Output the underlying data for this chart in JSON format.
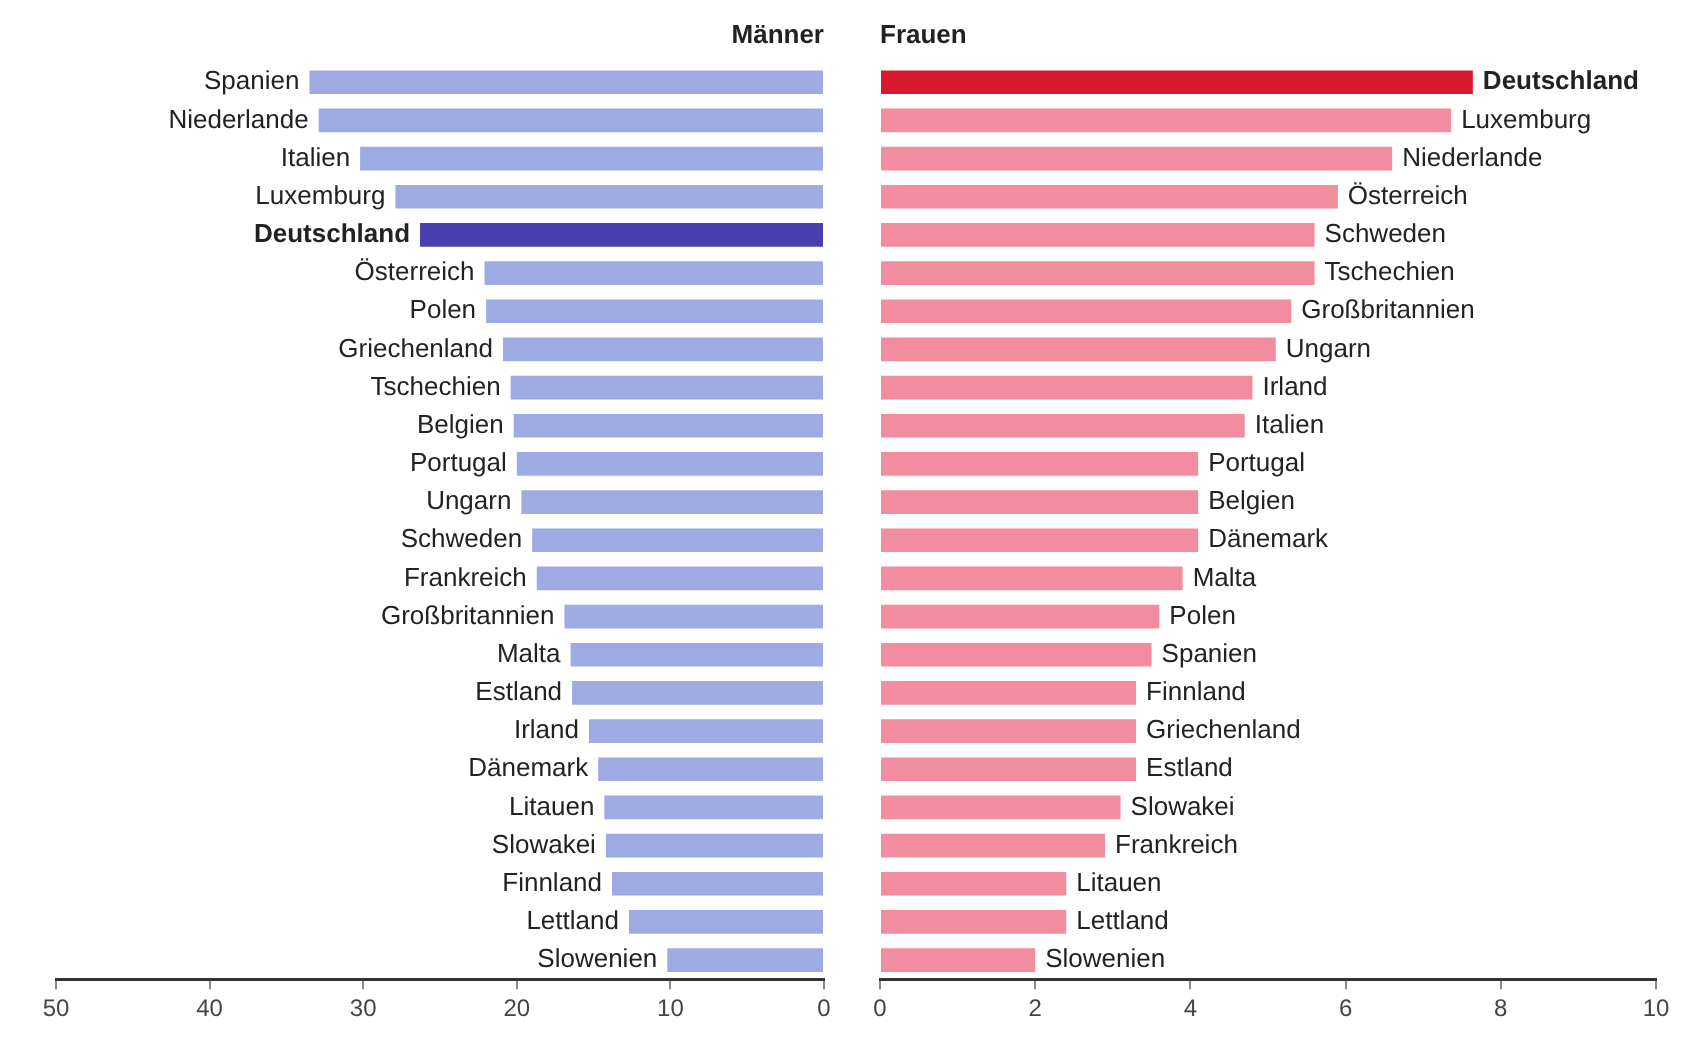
{
  "chart_data": [
    {
      "type": "bar",
      "orientation": "horizontal",
      "title": "Männer",
      "grid": false,
      "legend": false,
      "categories": [
        "Spanien",
        "Niederlande",
        "Italien",
        "Luxemburg",
        "Deutschland",
        "Österreich",
        "Polen",
        "Griechenland",
        "Tschechien",
        "Belgien",
        "Portugal",
        "Ungarn",
        "Schweden",
        "Frankreich",
        "Großbritannien",
        "Malta",
        "Estland",
        "Irland",
        "Dänemark",
        "Litauen",
        "Slowakei",
        "Finnland",
        "Lettland",
        "Slowenien"
      ],
      "values": [
        33.5,
        32.9,
        30.2,
        27.9,
        26.3,
        22.1,
        22.0,
        20.9,
        20.4,
        20.2,
        20.0,
        19.7,
        19.0,
        18.7,
        16.9,
        16.5,
        16.4,
        15.3,
        14.7,
        14.3,
        14.2,
        13.8,
        12.7,
        10.2
      ],
      "colors": [
        "#9eabe2",
        "#9eabe2",
        "#9eabe2",
        "#9eabe2",
        "#4a3fae",
        "#9eabe2",
        "#9eabe2",
        "#9eabe2",
        "#9eabe2",
        "#9eabe2",
        "#9eabe2",
        "#9eabe2",
        "#9eabe2",
        "#9eabe2",
        "#9eabe2",
        "#9eabe2",
        "#9eabe2",
        "#9eabe2",
        "#9eabe2",
        "#9eabe2",
        "#9eabe2",
        "#9eabe2",
        "#9eabe2",
        "#9eabe2"
      ],
      "xlim": [
        50,
        0
      ],
      "xticks": [
        50,
        40,
        30,
        20,
        10,
        0
      ]
    },
    {
      "type": "bar",
      "orientation": "horizontal",
      "title": "Frauen",
      "grid": false,
      "legend": false,
      "categories": [
        "Deutschland",
        "Luxemburg",
        "Niederlande",
        "Österreich",
        "Schweden",
        "Tschechien",
        "Großbritannien",
        "Ungarn",
        "Irland",
        "Italien",
        "Portugal",
        "Belgien",
        "Dänemark",
        "Malta",
        "Polen",
        "Spanien",
        "Finnland",
        "Griechenland",
        "Estland",
        "Slowakei",
        "Frankreich",
        "Litauen",
        "Lettland",
        "Slowenien"
      ],
      "values": [
        7.64,
        7.36,
        6.6,
        5.9,
        5.6,
        5.6,
        5.3,
        5.1,
        4.8,
        4.7,
        4.1,
        4.1,
        4.1,
        3.9,
        3.6,
        3.5,
        3.3,
        3.3,
        3.3,
        3.1,
        2.9,
        2.4,
        2.4,
        2.0
      ],
      "colors": [
        "#d8192f",
        "#f28c9f",
        "#f28c9f",
        "#f28c9f",
        "#f28c9f",
        "#f28c9f",
        "#f28c9f",
        "#f28c9f",
        "#f28c9f",
        "#f28c9f",
        "#f28c9f",
        "#f28c9f",
        "#f28c9f",
        "#f28c9f",
        "#f28c9f",
        "#f28c9f",
        "#f28c9f",
        "#f28c9f",
        "#f28c9f",
        "#f28c9f",
        "#f28c9f",
        "#f28c9f",
        "#f28c9f",
        "#f28c9f"
      ],
      "xlim": [
        0,
        10
      ],
      "xticks": [
        0,
        2,
        4,
        6,
        8,
        10
      ]
    }
  ]
}
